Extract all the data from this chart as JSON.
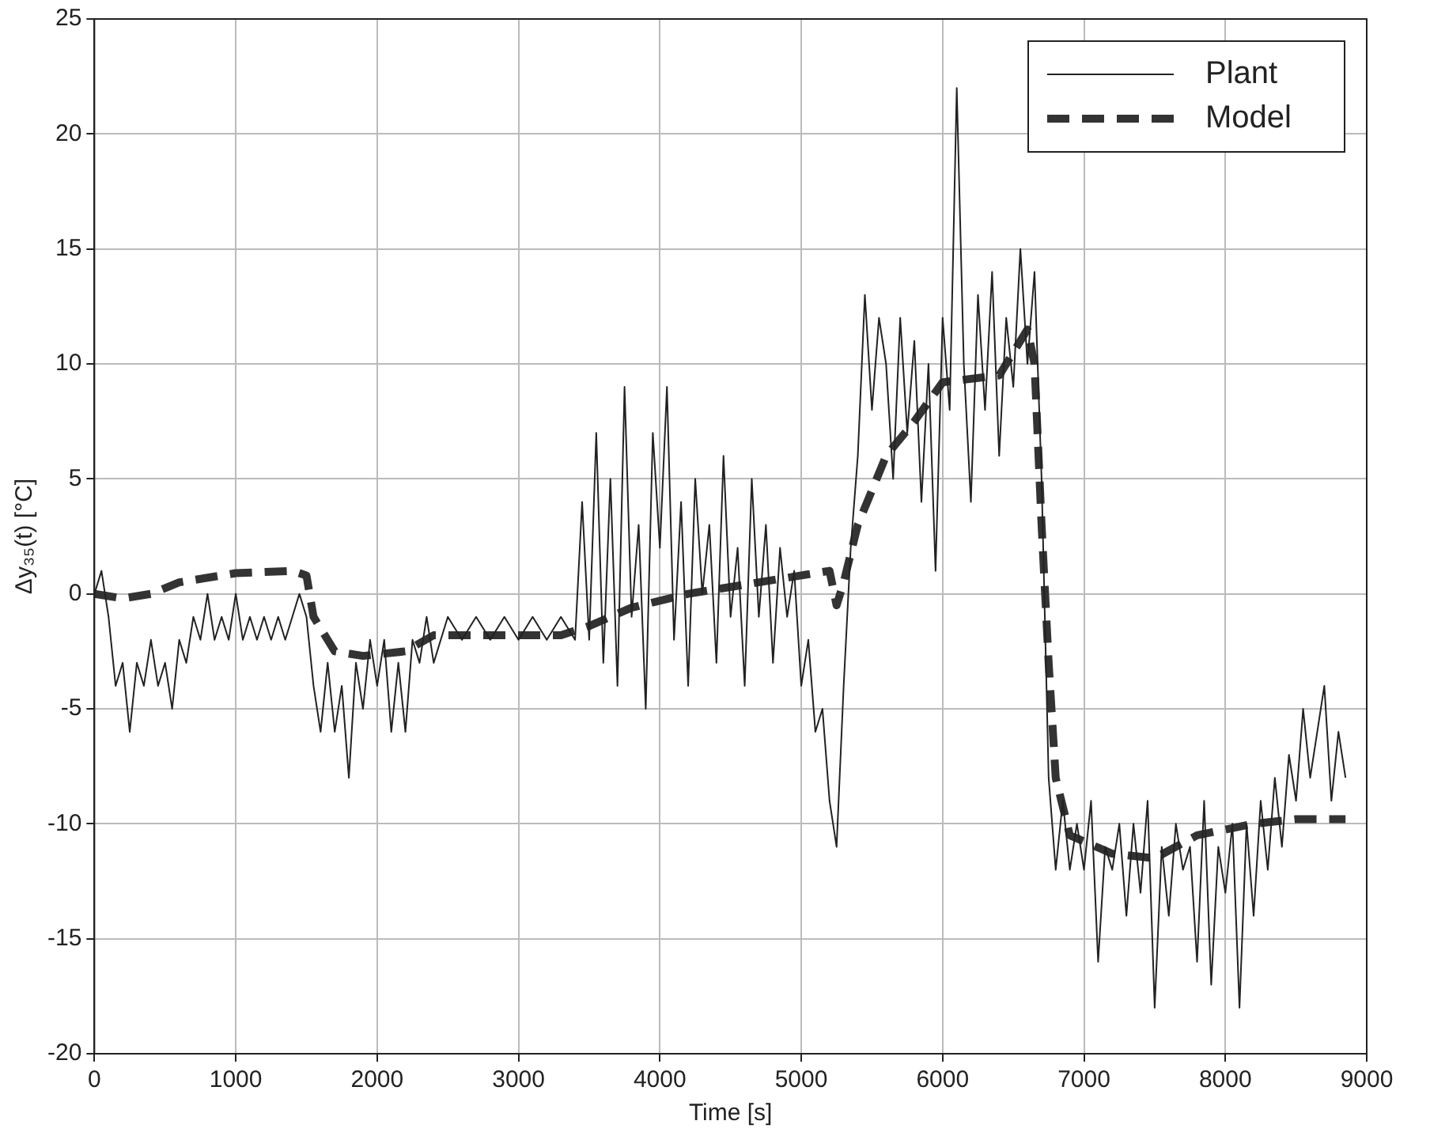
{
  "chart_data": {
    "type": "line",
    "xlabel": "Time [s]",
    "ylabel": "Δy₃₅(t) [°C]",
    "xlim": [
      0,
      9000
    ],
    "xticks": [
      0,
      1000,
      2000,
      3000,
      4000,
      5000,
      6000,
      7000,
      8000,
      9000
    ],
    "ylim": [
      -20,
      25
    ],
    "yticks": [
      -20,
      -15,
      -10,
      -5,
      0,
      5,
      10,
      15,
      20,
      25
    ],
    "grid": true,
    "legend": "top right",
    "marker": "none",
    "series": [
      {
        "name": "Plant",
        "color": "#222222",
        "line_style": "solid",
        "x": [
          0,
          50,
          100,
          150,
          200,
          250,
          300,
          350,
          400,
          450,
          500,
          550,
          600,
          650,
          700,
          750,
          800,
          850,
          900,
          950,
          1000,
          1050,
          1100,
          1150,
          1200,
          1250,
          1300,
          1350,
          1400,
          1450,
          1500,
          1550,
          1600,
          1650,
          1700,
          1750,
          1800,
          1850,
          1900,
          1950,
          2000,
          2050,
          2100,
          2150,
          2200,
          2250,
          2300,
          2350,
          2400,
          2450,
          2500,
          2600,
          2700,
          2800,
          2900,
          3000,
          3100,
          3200,
          3300,
          3400,
          3450,
          3500,
          3550,
          3600,
          3650,
          3700,
          3750,
          3800,
          3850,
          3900,
          3950,
          4000,
          4050,
          4100,
          4150,
          4200,
          4250,
          4300,
          4350,
          4400,
          4450,
          4500,
          4550,
          4600,
          4650,
          4700,
          4750,
          4800,
          4850,
          4900,
          4950,
          5000,
          5050,
          5100,
          5150,
          5200,
          5250,
          5300,
          5350,
          5400,
          5450,
          5500,
          5550,
          5600,
          5650,
          5700,
          5750,
          5800,
          5850,
          5900,
          5950,
          6000,
          6050,
          6100,
          6150,
          6200,
          6250,
          6300,
          6350,
          6400,
          6450,
          6500,
          6550,
          6600,
          6650,
          6700,
          6750,
          6800,
          6850,
          6900,
          6950,
          7000,
          7050,
          7100,
          7150,
          7200,
          7250,
          7300,
          7350,
          7400,
          7450,
          7500,
          7550,
          7600,
          7650,
          7700,
          7750,
          7800,
          7850,
          7900,
          7950,
          8000,
          8050,
          8100,
          8150,
          8200,
          8250,
          8300,
          8350,
          8400,
          8450,
          8500,
          8550,
          8600,
          8650,
          8700,
          8750,
          8800,
          8850
        ],
        "values": [
          0,
          1,
          -1,
          -4,
          -3,
          -6,
          -3,
          -4,
          -2,
          -4,
          -3,
          -5,
          -2,
          -3,
          -1,
          -2,
          0,
          -2,
          -1,
          -2,
          0,
          -2,
          -1,
          -2,
          -1,
          -2,
          -1,
          -2,
          -1,
          0,
          -1,
          -4,
          -6,
          -3,
          -6,
          -4,
          -8,
          -3,
          -5,
          -2,
          -4,
          -2,
          -6,
          -3,
          -6,
          -2,
          -3,
          -1,
          -3,
          -2,
          -1,
          -2,
          -1,
          -2,
          -1,
          -2,
          -1,
          -2,
          -1,
          -2,
          4,
          -2,
          7,
          -3,
          5,
          -4,
          9,
          -1,
          3,
          -5,
          7,
          2,
          9,
          -2,
          4,
          -4,
          5,
          0,
          3,
          -3,
          6,
          -1,
          2,
          -4,
          5,
          -1,
          3,
          -3,
          2,
          -1,
          1,
          -4,
          -2,
          -6,
          -5,
          -9,
          -11,
          -4,
          2,
          6,
          13,
          8,
          12,
          10,
          5,
          12,
          7,
          11,
          4,
          10,
          1,
          12,
          8,
          22,
          10,
          4,
          13,
          8,
          14,
          6,
          12,
          9,
          15,
          10,
          14,
          5,
          -8,
          -12,
          -9,
          -12,
          -10,
          -12,
          -9,
          -16,
          -11,
          -12,
          -10,
          -14,
          -10,
          -13,
          -9,
          -18,
          -11,
          -14,
          -10,
          -12,
          -11,
          -16,
          -9,
          -17,
          -11,
          -13,
          -10,
          -18,
          -10,
          -14,
          -9,
          -12,
          -8,
          -11,
          -7,
          -9,
          -5,
          -8,
          -6,
          -4,
          -9,
          -6,
          -8
        ]
      },
      {
        "name": "Model",
        "color": "#333333",
        "line_style": "dashed",
        "x": [
          0,
          200,
          400,
          600,
          1000,
          1400,
          1500,
          1550,
          1700,
          1900,
          2200,
          2400,
          2800,
          3300,
          3500,
          3800,
          4200,
          4600,
          5000,
          5200,
          5250,
          5300,
          5400,
          5600,
          5800,
          6000,
          6400,
          6600,
          6650,
          6700,
          6750,
          6800,
          6900,
          7200,
          7500,
          7800,
          8200,
          8500,
          8850
        ],
        "values": [
          0,
          -0.2,
          0,
          0.5,
          0.9,
          1,
          0.8,
          -1,
          -2.5,
          -2.7,
          -2.5,
          -1.8,
          -1.8,
          -1.8,
          -1.4,
          -0.6,
          0,
          0.4,
          0.8,
          1,
          -0.5,
          0.5,
          3,
          6,
          7.5,
          9.2,
          9.5,
          11.5,
          10,
          3,
          -3,
          -8,
          -10.5,
          -11.3,
          -11.5,
          -10.5,
          -10,
          -9.8,
          -9.8
        ]
      }
    ]
  }
}
